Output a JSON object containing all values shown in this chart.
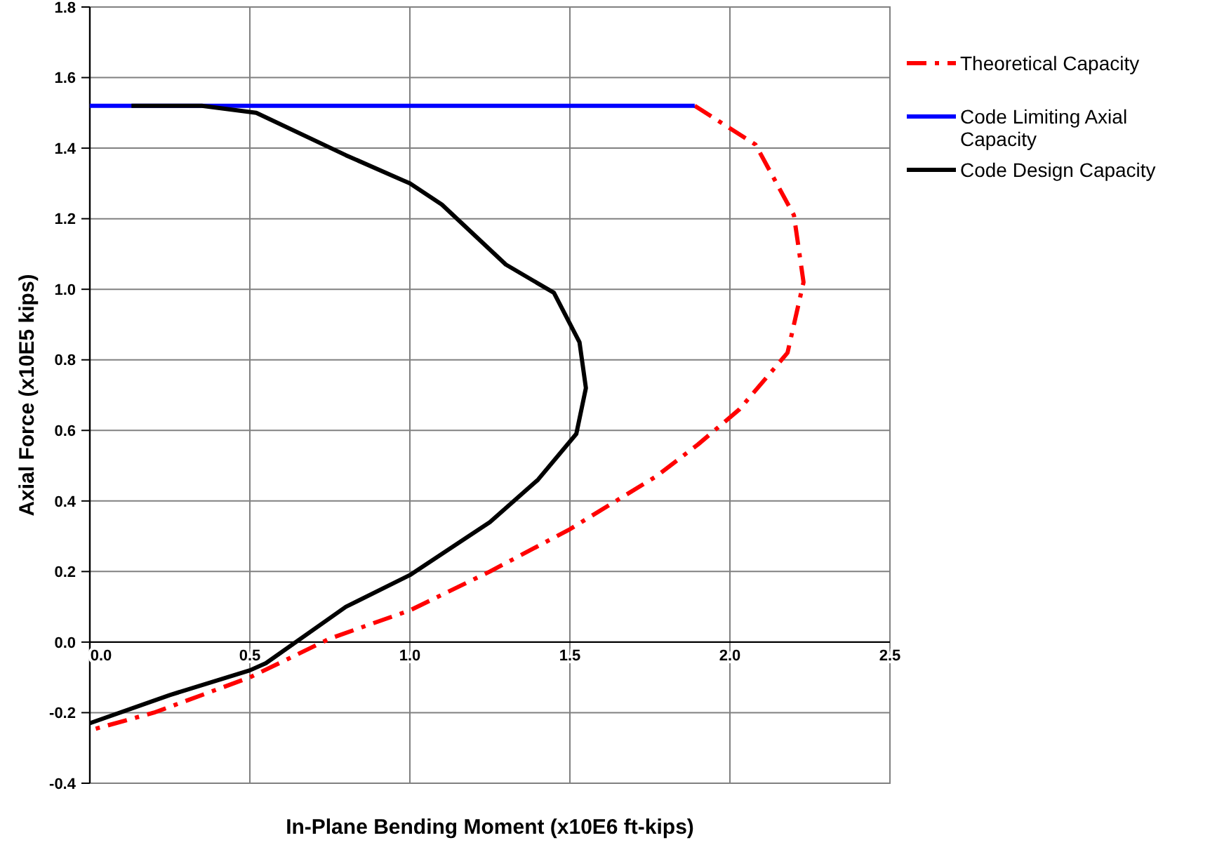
{
  "chart_data": {
    "type": "line",
    "xlabel": "In-Plane Bending Moment (x10E6 ft-kips)",
    "ylabel": "Axial Force (x10E5 kips)",
    "xlim": [
      0,
      2.5
    ],
    "ylim": [
      -0.4,
      1.8
    ],
    "xticks": [
      {
        "value": 0,
        "label": "0.0"
      },
      {
        "value": 0.5,
        "label": "0.5"
      },
      {
        "value": 1,
        "label": "1.0"
      },
      {
        "value": 1.5,
        "label": "1.5"
      },
      {
        "value": 2,
        "label": "2.0"
      },
      {
        "value": 2.5,
        "label": "2.5"
      }
    ],
    "yticks": [
      {
        "value": -0.4,
        "label": "-0.4"
      },
      {
        "value": -0.2,
        "label": "-0.2"
      },
      {
        "value": 0,
        "label": "0.0"
      },
      {
        "value": 0.2,
        "label": "0.2"
      },
      {
        "value": 0.4,
        "label": "0.4"
      },
      {
        "value": 0.6,
        "label": "0.6"
      },
      {
        "value": 0.8,
        "label": "0.8"
      },
      {
        "value": 1,
        "label": "1.0"
      },
      {
        "value": 1.2,
        "label": "1.2"
      },
      {
        "value": 1.4,
        "label": "1.4"
      },
      {
        "value": 1.6,
        "label": "1.6"
      },
      {
        "value": 1.8,
        "label": "1.8"
      }
    ],
    "grid": true,
    "legend": "right",
    "marker": "none",
    "series": [
      {
        "name": "Theoretical Capacity",
        "color": "#ff0000",
        "line_style": "dashed",
        "x": [
          1.89,
          2.08,
          2.2,
          2.23,
          2.18,
          2.03,
          1.9,
          1.77,
          1.5,
          1.25,
          1.0,
          0.75,
          0.5,
          0.2,
          0
        ],
        "values": [
          1.52,
          1.41,
          1.21,
          1.02,
          0.82,
          0.66,
          0.56,
          0.47,
          0.32,
          0.2,
          0.09,
          0.01,
          -0.1,
          -0.2,
          -0.25
        ]
      },
      {
        "name": "Code Limiting Axial Capacity",
        "color": "#0000ff",
        "line_style": "solid",
        "x": [
          0,
          1.89
        ],
        "values": [
          1.52,
          1.52
        ]
      },
      {
        "name": "Code Design Capacity",
        "color": "#000000",
        "line_style": "solid",
        "x": [
          0.13,
          0.35,
          0.52,
          0.8,
          1.0,
          1.1,
          1.3,
          1.45,
          1.53,
          1.55,
          1.52,
          1.4,
          1.25,
          1.0,
          0.8,
          0.55,
          0.5,
          0.25,
          0
        ],
        "values": [
          1.52,
          1.52,
          1.5,
          1.38,
          1.3,
          1.24,
          1.07,
          0.99,
          0.85,
          0.72,
          0.59,
          0.46,
          0.34,
          0.19,
          0.1,
          -0.06,
          -0.08,
          -0.15,
          -0.23
        ]
      }
    ]
  }
}
